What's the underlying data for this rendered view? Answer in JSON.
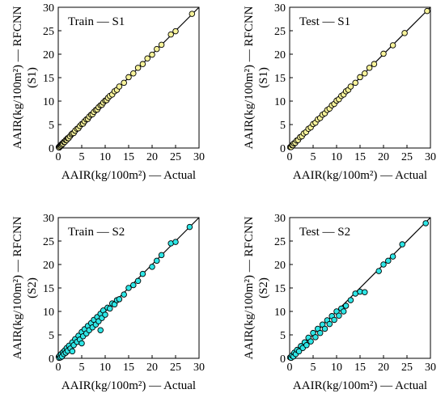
{
  "chart_data": [
    {
      "type": "scatter",
      "panel_label": "Train — S1",
      "xlabel": "AAIR(kg/100m²) — Actual",
      "ylabel_main": "AAIR(kg/100m²) — RFCNN",
      "ylabel_sub": "(S1)",
      "xlim": [
        0,
        30
      ],
      "ylim": [
        0,
        30
      ],
      "xticks": [
        0,
        5,
        10,
        15,
        20,
        25,
        30
      ],
      "yticks": [
        0,
        5,
        10,
        15,
        20,
        25,
        30
      ],
      "reference_line": "y = x",
      "marker_color": "#f7f39a",
      "x": [
        0.1,
        0.2,
        0.3,
        0.4,
        0.5,
        0.6,
        0.7,
        0.8,
        0.9,
        1.0,
        1.2,
        1.4,
        1.6,
        1.8,
        2.0,
        2.2,
        2.5,
        2.8,
        3.0,
        3.3,
        3.6,
        4.0,
        4.3,
        4.6,
        5.0,
        5.3,
        5.6,
        6.0,
        6.3,
        6.6,
        7.0,
        7.3,
        7.6,
        8.0,
        8.3,
        8.6,
        9.0,
        9.3,
        9.6,
        10.0,
        10.3,
        10.6,
        11.0,
        11.5,
        12.0,
        12.5,
        13.0,
        14.0,
        15.0,
        16.0,
        17.0,
        18.0,
        19.0,
        20.0,
        21.0,
        22.0,
        24.0,
        25.0,
        28.5
      ],
      "y": [
        0.2,
        0.1,
        0.4,
        0.3,
        0.6,
        0.5,
        0.8,
        0.7,
        1.0,
        0.9,
        1.3,
        1.3,
        1.7,
        1.7,
        2.1,
        2.1,
        2.5,
        2.9,
        3.1,
        3.2,
        3.7,
        4.1,
        4.2,
        4.7,
        5.1,
        5.2,
        5.7,
        6.1,
        6.2,
        6.7,
        7.1,
        7.2,
        7.7,
        8.1,
        8.2,
        8.7,
        9.1,
        9.2,
        9.7,
        10.1,
        10.2,
        10.7,
        11.1,
        11.4,
        12.1,
        12.4,
        13.1,
        13.9,
        15.1,
        15.9,
        17.1,
        17.9,
        19.1,
        19.9,
        21.1,
        22.0,
        24.2,
        24.9,
        28.6
      ]
    },
    {
      "type": "scatter",
      "panel_label": "Test — S1",
      "xlabel": "AAIR(kg/100m²) — Actual",
      "ylabel_main": "AAIR(kg/100m²) — RFCNN",
      "ylabel_sub": "(S1)",
      "xlim": [
        0,
        30
      ],
      "ylim": [
        0,
        30
      ],
      "xticks": [
        0,
        5,
        10,
        15,
        20,
        25,
        30
      ],
      "yticks": [
        0,
        5,
        10,
        15,
        20,
        25,
        30
      ],
      "reference_line": "y = x",
      "marker_color": "#f7f39a",
      "x": [
        0.1,
        0.3,
        0.5,
        0.7,
        0.9,
        1.2,
        1.5,
        1.8,
        2.2,
        2.6,
        3.0,
        3.5,
        4.0,
        4.5,
        5.0,
        5.5,
        6.0,
        6.5,
        7.0,
        7.5,
        8.0,
        8.5,
        9.0,
        9.5,
        10.0,
        10.5,
        11.0,
        11.5,
        12.0,
        12.5,
        13.0,
        14.0,
        15.0,
        16.0,
        17.0,
        18.0,
        20.0,
        22.0,
        24.5,
        29.3
      ],
      "y": [
        0.2,
        0.2,
        0.6,
        0.6,
        1.0,
        1.1,
        1.6,
        1.7,
        2.3,
        2.5,
        3.1,
        3.4,
        4.1,
        4.4,
        5.1,
        5.4,
        6.1,
        6.4,
        7.1,
        7.4,
        8.1,
        8.4,
        9.1,
        9.4,
        10.1,
        10.4,
        11.1,
        11.4,
        12.1,
        12.4,
        13.1,
        13.9,
        15.1,
        15.9,
        17.1,
        17.9,
        20.1,
        21.9,
        24.5,
        29.2
      ]
    },
    {
      "type": "scatter",
      "panel_label": "Train — S2",
      "xlabel": "AAIR(kg/100m²) — Actual",
      "ylabel_main": "AAIR(kg/100m²) — RFCNN",
      "ylabel_sub": "(S2)",
      "xlim": [
        0,
        30
      ],
      "ylim": [
        0,
        30
      ],
      "xticks": [
        0,
        5,
        10,
        15,
        20,
        25,
        30
      ],
      "yticks": [
        0,
        5,
        10,
        15,
        20,
        25,
        30
      ],
      "reference_line": "y = x",
      "marker_color": "#2ee6e6",
      "x": [
        0.1,
        0.2,
        0.3,
        0.5,
        0.6,
        0.8,
        1.0,
        1.2,
        1.4,
        1.6,
        1.8,
        2.0,
        2.3,
        2.6,
        3.0,
        3.3,
        3.6,
        4.0,
        4.3,
        4.6,
        5.0,
        5.3,
        5.6,
        6.0,
        6.3,
        6.6,
        7.0,
        7.3,
        7.6,
        8.0,
        8.3,
        8.6,
        9.0,
        9.3,
        9.6,
        10.0,
        10.5,
        11.0,
        11.5,
        12.0,
        12.5,
        13.0,
        14.0,
        15.0,
        16.0,
        17.0,
        18.0,
        20.0,
        21.0,
        22.0,
        24.0,
        25.0,
        28.0,
        5.0,
        3.0,
        9.0
      ],
      "y": [
        0.3,
        0.1,
        0.6,
        0.2,
        0.9,
        0.4,
        1.3,
        0.9,
        1.7,
        1.2,
        2.2,
        1.6,
        2.7,
        2.1,
        3.4,
        2.8,
        4.1,
        3.5,
        4.8,
        4.0,
        5.6,
        4.7,
        6.2,
        5.3,
        6.9,
        6.0,
        7.5,
        6.6,
        8.2,
        7.2,
        8.8,
        7.9,
        9.5,
        8.6,
        10.2,
        9.3,
        10.8,
        10.6,
        11.7,
        11.5,
        12.4,
        12.6,
        13.6,
        15.0,
        15.6,
        16.5,
        18.0,
        19.5,
        20.8,
        22.0,
        24.5,
        24.8,
        28.0,
        3.2,
        1.5,
        6.0
      ]
    },
    {
      "type": "scatter",
      "panel_label": "Test — S2",
      "xlabel": "AAIR(kg/100m²) — Actual",
      "ylabel_main": "AAIR(kg/100m²) — RFCNN",
      "ylabel_sub": "(S2)",
      "xlim": [
        0,
        30
      ],
      "ylim": [
        0,
        30
      ],
      "xticks": [
        0,
        5,
        10,
        15,
        20,
        25,
        30
      ],
      "yticks": [
        0,
        5,
        10,
        15,
        20,
        25,
        30
      ],
      "reference_line": "y = x",
      "marker_color": "#2ee6e6",
      "x": [
        0.1,
        0.3,
        0.5,
        0.8,
        1.0,
        1.3,
        1.6,
        2.0,
        2.4,
        2.8,
        3.2,
        3.6,
        4.0,
        4.5,
        5.0,
        5.5,
        6.0,
        6.5,
        7.0,
        7.5,
        8.0,
        8.5,
        9.0,
        9.5,
        10.0,
        10.5,
        11.0,
        11.5,
        12.0,
        13.0,
        14.0,
        15.0,
        16.0,
        19.0,
        20.0,
        21.0,
        22.0,
        24.0,
        29.0
      ],
      "y": [
        0.2,
        0.1,
        0.6,
        0.4,
        1.2,
        0.9,
        1.8,
        1.5,
        2.6,
        2.2,
        3.4,
        2.8,
        4.4,
        3.6,
        5.4,
        4.5,
        6.3,
        5.4,
        7.2,
        6.3,
        8.1,
        7.3,
        9.0,
        8.2,
        10.0,
        9.1,
        10.6,
        10.0,
        11.2,
        12.4,
        13.8,
        14.2,
        14.1,
        18.6,
        20.0,
        20.8,
        21.7,
        24.3,
        28.8
      ]
    }
  ]
}
